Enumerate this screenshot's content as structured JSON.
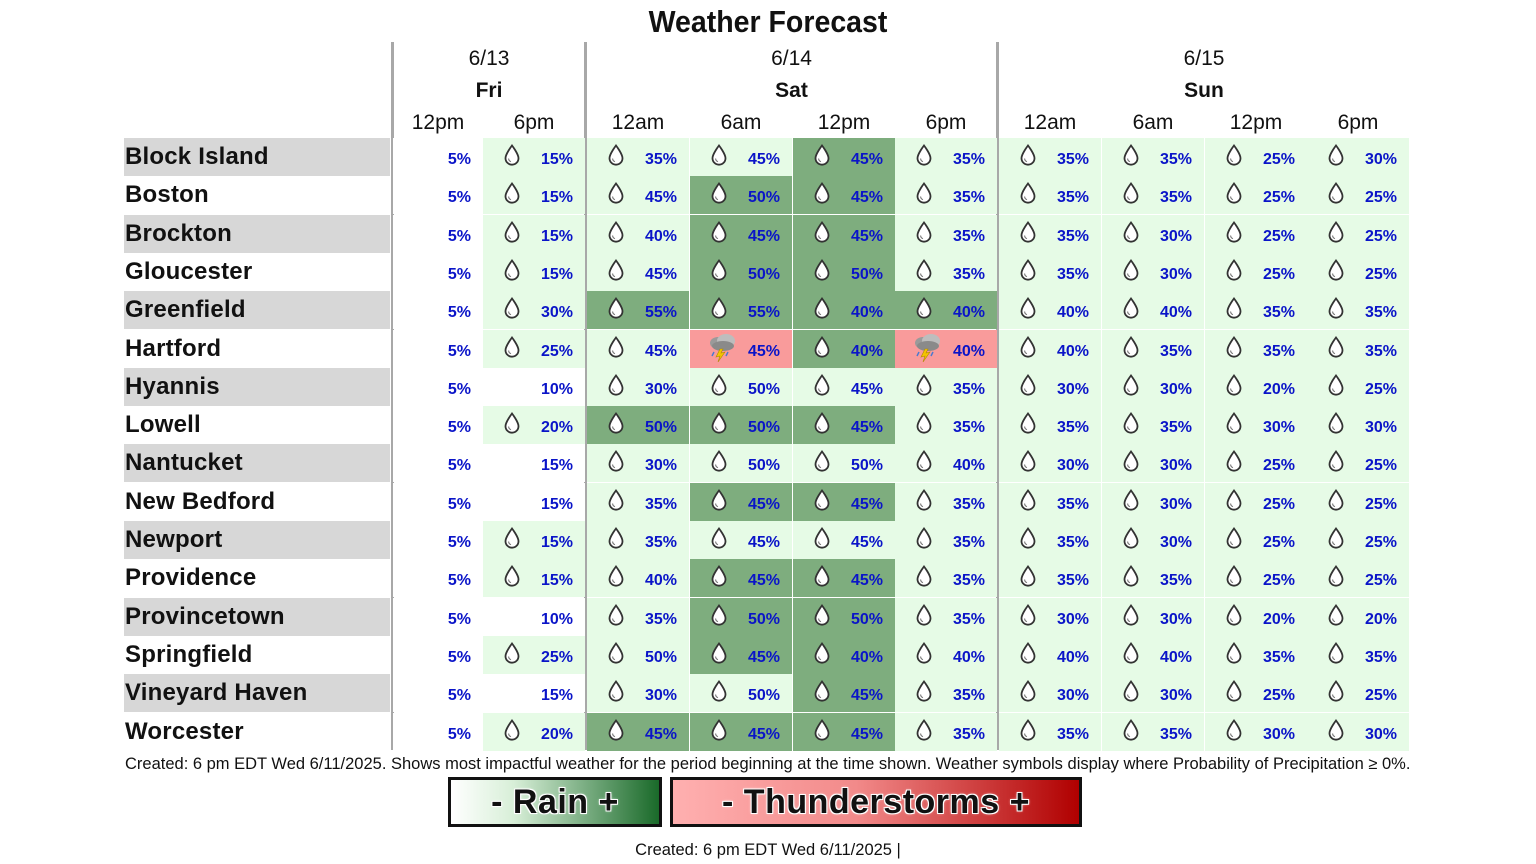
{
  "title": "Weather Forecast",
  "colors": {
    "light_green": "#e6fbe6",
    "dark_green": "#7ead7e",
    "storm_red": "#f99b9b",
    "white": "#ffffff",
    "percent_text": "#0a14c8",
    "legend_rain_gradient": [
      "#ffffff",
      "#1a6a2a"
    ],
    "legend_storm_gradient": [
      "#ffb0b0",
      "#b00000"
    ]
  },
  "days": [
    {
      "date": "6/13",
      "name": "Fri"
    },
    {
      "date": "6/14",
      "name": "Sat"
    },
    {
      "date": "6/15",
      "name": "Sun"
    }
  ],
  "periods": [
    "12pm",
    "6pm",
    "12am",
    "6am",
    "12pm",
    "6pm",
    "12am",
    "6am",
    "12pm",
    "6pm"
  ],
  "chart_data": {
    "type": "table",
    "title": "Weather Forecast",
    "columns": [
      "6/13 Fri 12pm",
      "6/13 Fri 6pm",
      "6/14 Sat 12am",
      "6/14 Sat 6am",
      "6/14 Sat 12pm",
      "6/14 Sat 6pm",
      "6/15 Sun 12am",
      "6/15 Sun 6am",
      "6/15 Sun 12pm",
      "6/15 Sun 6pm"
    ],
    "rows": [
      {
        "location": "Block Island",
        "pop": [
          5,
          15,
          35,
          45,
          45,
          35,
          35,
          35,
          25,
          30
        ],
        "level": [
          "w",
          "l",
          "l",
          "l",
          "d",
          "l",
          "l",
          "l",
          "l",
          "l"
        ],
        "symbol": [
          "",
          "r",
          "r",
          "r",
          "r",
          "r",
          "r",
          "r",
          "r",
          "r"
        ]
      },
      {
        "location": "Boston",
        "pop": [
          5,
          15,
          45,
          50,
          45,
          35,
          35,
          35,
          25,
          25
        ],
        "level": [
          "w",
          "l",
          "l",
          "d",
          "d",
          "l",
          "l",
          "l",
          "l",
          "l"
        ],
        "symbol": [
          "",
          "r",
          "r",
          "r",
          "r",
          "r",
          "r",
          "r",
          "r",
          "r"
        ]
      },
      {
        "location": "Brockton",
        "pop": [
          5,
          15,
          40,
          45,
          45,
          35,
          35,
          30,
          25,
          25
        ],
        "level": [
          "w",
          "l",
          "l",
          "d",
          "d",
          "l",
          "l",
          "l",
          "l",
          "l"
        ],
        "symbol": [
          "",
          "r",
          "r",
          "r",
          "r",
          "r",
          "r",
          "r",
          "r",
          "r"
        ]
      },
      {
        "location": "Gloucester",
        "pop": [
          5,
          15,
          45,
          50,
          50,
          35,
          35,
          30,
          25,
          25
        ],
        "level": [
          "w",
          "l",
          "l",
          "d",
          "d",
          "l",
          "l",
          "l",
          "l",
          "l"
        ],
        "symbol": [
          "",
          "r",
          "r",
          "r",
          "r",
          "r",
          "r",
          "r",
          "r",
          "r"
        ]
      },
      {
        "location": "Greenfield",
        "pop": [
          5,
          30,
          55,
          55,
          40,
          40,
          40,
          40,
          35,
          35
        ],
        "level": [
          "w",
          "l",
          "d",
          "d",
          "d",
          "d",
          "l",
          "l",
          "l",
          "l"
        ],
        "symbol": [
          "",
          "r",
          "r",
          "r",
          "r",
          "r",
          "r",
          "r",
          "r",
          "r"
        ]
      },
      {
        "location": "Hartford",
        "pop": [
          5,
          25,
          45,
          45,
          40,
          40,
          40,
          35,
          35,
          35
        ],
        "level": [
          "w",
          "l",
          "l",
          "s",
          "d",
          "s",
          "l",
          "l",
          "l",
          "l"
        ],
        "symbol": [
          "",
          "r",
          "r",
          "t",
          "r",
          "t",
          "r",
          "r",
          "r",
          "r"
        ]
      },
      {
        "location": "Hyannis",
        "pop": [
          5,
          10,
          30,
          50,
          45,
          35,
          30,
          30,
          20,
          25
        ],
        "level": [
          "w",
          "w",
          "l",
          "l",
          "l",
          "l",
          "l",
          "l",
          "l",
          "l"
        ],
        "symbol": [
          "",
          "",
          "r",
          "r",
          "r",
          "r",
          "r",
          "r",
          "r",
          "r"
        ]
      },
      {
        "location": "Lowell",
        "pop": [
          5,
          20,
          50,
          50,
          45,
          35,
          35,
          35,
          30,
          30
        ],
        "level": [
          "w",
          "l",
          "d",
          "d",
          "d",
          "l",
          "l",
          "l",
          "l",
          "l"
        ],
        "symbol": [
          "",
          "r",
          "r",
          "r",
          "r",
          "r",
          "r",
          "r",
          "r",
          "r"
        ]
      },
      {
        "location": "Nantucket",
        "pop": [
          5,
          15,
          30,
          50,
          50,
          40,
          30,
          30,
          25,
          25
        ],
        "level": [
          "w",
          "w",
          "l",
          "l",
          "l",
          "l",
          "l",
          "l",
          "l",
          "l"
        ],
        "symbol": [
          "",
          "",
          "r",
          "r",
          "r",
          "r",
          "r",
          "r",
          "r",
          "r"
        ]
      },
      {
        "location": "New Bedford",
        "pop": [
          5,
          15,
          35,
          45,
          45,
          35,
          35,
          30,
          25,
          25
        ],
        "level": [
          "w",
          "w",
          "l",
          "d",
          "d",
          "l",
          "l",
          "l",
          "l",
          "l"
        ],
        "symbol": [
          "",
          "",
          "r",
          "r",
          "r",
          "r",
          "r",
          "r",
          "r",
          "r"
        ]
      },
      {
        "location": "Newport",
        "pop": [
          5,
          15,
          35,
          45,
          45,
          35,
          35,
          30,
          25,
          25
        ],
        "level": [
          "w",
          "l",
          "l",
          "l",
          "l",
          "l",
          "l",
          "l",
          "l",
          "l"
        ],
        "symbol": [
          "",
          "r",
          "r",
          "r",
          "r",
          "r",
          "r",
          "r",
          "r",
          "r"
        ]
      },
      {
        "location": "Providence",
        "pop": [
          5,
          15,
          40,
          45,
          45,
          35,
          35,
          35,
          25,
          25
        ],
        "level": [
          "w",
          "l",
          "l",
          "d",
          "d",
          "l",
          "l",
          "l",
          "l",
          "l"
        ],
        "symbol": [
          "",
          "r",
          "r",
          "r",
          "r",
          "r",
          "r",
          "r",
          "r",
          "r"
        ]
      },
      {
        "location": "Provincetown",
        "pop": [
          5,
          10,
          35,
          50,
          50,
          35,
          30,
          30,
          20,
          20
        ],
        "level": [
          "w",
          "w",
          "l",
          "d",
          "d",
          "l",
          "l",
          "l",
          "l",
          "l"
        ],
        "symbol": [
          "",
          "",
          "r",
          "r",
          "r",
          "r",
          "r",
          "r",
          "r",
          "r"
        ]
      },
      {
        "location": "Springfield",
        "pop": [
          5,
          25,
          50,
          45,
          40,
          40,
          40,
          40,
          35,
          35
        ],
        "level": [
          "w",
          "l",
          "l",
          "d",
          "d",
          "l",
          "l",
          "l",
          "l",
          "l"
        ],
        "symbol": [
          "",
          "r",
          "r",
          "r",
          "r",
          "r",
          "r",
          "r",
          "r",
          "r"
        ]
      },
      {
        "location": "Vineyard Haven",
        "pop": [
          5,
          15,
          30,
          50,
          45,
          35,
          30,
          30,
          25,
          25
        ],
        "level": [
          "w",
          "w",
          "l",
          "l",
          "d",
          "l",
          "l",
          "l",
          "l",
          "l"
        ],
        "symbol": [
          "",
          "",
          "r",
          "r",
          "r",
          "r",
          "r",
          "r",
          "r",
          "r"
        ]
      },
      {
        "location": "Worcester",
        "pop": [
          5,
          20,
          45,
          45,
          45,
          35,
          35,
          35,
          30,
          30
        ],
        "level": [
          "w",
          "l",
          "d",
          "d",
          "d",
          "l",
          "l",
          "l",
          "l",
          "l"
        ],
        "symbol": [
          "",
          "r",
          "r",
          "r",
          "r",
          "r",
          "r",
          "r",
          "r",
          "r"
        ]
      }
    ]
  },
  "footnote": "Created: 6 pm EDT Wed 6/11/2025. Shows most impactful weather for the period beginning at the time shown. Weather symbols display where Probability of Precipitation ≥ 0%.",
  "legend": {
    "rain_label": "- Rain +",
    "storm_label": "- Thunderstorms +"
  },
  "created": "Created: 6 pm EDT Wed 6/11/2025  |"
}
